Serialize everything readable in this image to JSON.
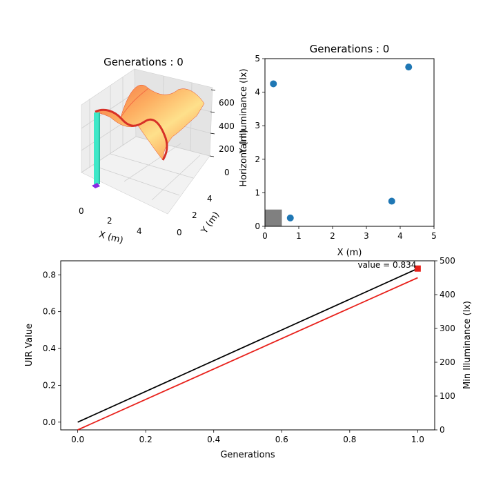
{
  "chart_data": [
    {
      "type": "surface3d",
      "title": "Generations : 0",
      "xlabel": "X (m)",
      "ylabel": "Y (m)",
      "zlabel": "",
      "xticks": [
        "0",
        "2",
        "4"
      ],
      "yticks": [
        "0",
        "2",
        "4"
      ],
      "zticks": [
        "0",
        "200",
        "400",
        "600"
      ],
      "xlim": [
        0,
        5
      ],
      "ylim": [
        0,
        5
      ],
      "zlim": [
        0,
        650
      ],
      "colormap": "Spectral_r (red = low, yellow = mid)",
      "surface_description": "Horizontal illuminance over a 5 m x 5 m floor; peaks around 600 lx near lamp positions, ~300-400 lx in valleys",
      "bar": {
        "x": 0.25,
        "y": 0.25,
        "height": 450,
        "color": "#3ee8c8",
        "base_color": "#8a2be2"
      }
    },
    {
      "type": "scatter",
      "title": "Generations : 0",
      "xlabel": "X (m)",
      "ylabel": "Y (m)",
      "ylabel_overlay": "Horizontal Illuminance (lx)",
      "xlim": [
        0,
        5
      ],
      "ylim": [
        0,
        5
      ],
      "xticks": [
        "0",
        "1",
        "2",
        "3",
        "4",
        "5"
      ],
      "yticks": [
        "0",
        "1",
        "2",
        "3",
        "4",
        "5"
      ],
      "points": [
        {
          "x": 0.25,
          "y": 4.25
        },
        {
          "x": 4.25,
          "y": 4.75
        },
        {
          "x": 3.75,
          "y": 0.75
        },
        {
          "x": 0.75,
          "y": 0.25
        }
      ],
      "point_color": "#1f77b4",
      "rect": {
        "x0": 0,
        "y0": 0,
        "x1": 0.5,
        "y1": 0.5,
        "color": "#808080"
      }
    },
    {
      "type": "line",
      "xlabel": "Generations",
      "ylabel": "UIR Value",
      "y2label": "Min Illuminance (lx)",
      "xlim": [
        -0.05,
        1.05
      ],
      "ylim": [
        -0.042,
        0.876
      ],
      "y2lim": [
        0,
        500
      ],
      "xticks": [
        "0.0",
        "0.2",
        "0.4",
        "0.6",
        "0.8",
        "1.0"
      ],
      "yticks": [
        "0.0",
        "0.2",
        "0.4",
        "0.6",
        "0.8"
      ],
      "y2ticks": [
        "0",
        "100",
        "200",
        "300",
        "400",
        "500"
      ],
      "series": [
        {
          "axis": "left",
          "color": "#000000",
          "x": [
            0,
            1
          ],
          "y": [
            0.0,
            0.834
          ]
        },
        {
          "axis": "right",
          "color": "#e8201a",
          "x": [
            0,
            1
          ],
          "y": [
            0,
            450
          ]
        }
      ],
      "marker": {
        "x": 1.0,
        "y": 0.834,
        "color": "#e8201a"
      },
      "annotation": "value = 0.834"
    }
  ]
}
